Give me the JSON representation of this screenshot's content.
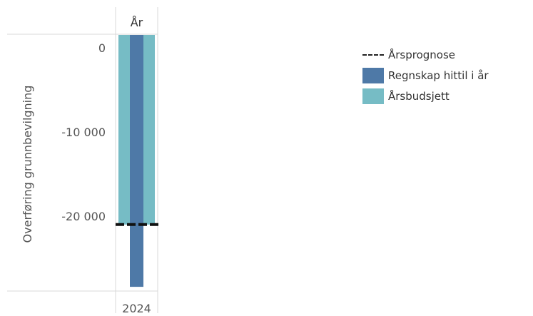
{
  "chart_data": {
    "type": "bar",
    "column_header": "År",
    "categories": [
      "2024"
    ],
    "ylabel": "Overføring grunnbevilgning",
    "ylim": [
      -28900,
      1600
    ],
    "yticks": [
      0,
      -10000,
      -20000
    ],
    "ytick_labels": [
      "0",
      "-10 000",
      "-20 000"
    ],
    "series": [
      {
        "name": "Årsbudsjett",
        "values": [
          -21000
        ],
        "color": "#76bcc5"
      },
      {
        "name": "Regnskap hittil i år",
        "values": [
          -28400
        ],
        "color": "#4e79a7"
      }
    ],
    "forecast": {
      "name": "Årsprognose",
      "value": -21000,
      "color": "#111111"
    },
    "legend_position": "right"
  }
}
